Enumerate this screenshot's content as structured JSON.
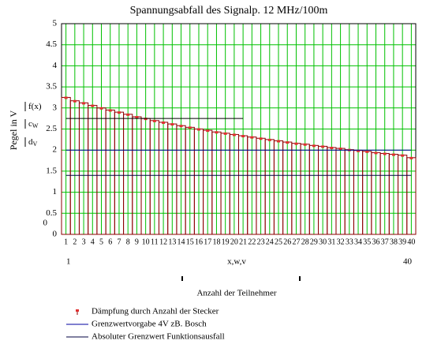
{
  "chart_data": {
    "type": "bar",
    "title": "Spannungsabfall des Signalp. 12 MHz/100m",
    "ylabel": "Pegel in V",
    "xlabel": "Anzahl der Teilnehmer",
    "xvar_label": "x,w,v",
    "xrange": [
      1,
      40
    ],
    "yrange_low": 0,
    "y_trace_labels": [
      {
        "main": "f(x)"
      },
      {
        "main": "c",
        "sub": "W"
      },
      {
        "main": "d",
        "sub": "V"
      }
    ],
    "x": [
      1,
      2,
      3,
      4,
      5,
      6,
      7,
      8,
      9,
      10,
      11,
      12,
      13,
      14,
      15,
      16,
      17,
      18,
      19,
      20,
      21,
      22,
      23,
      24,
      25,
      26,
      27,
      28,
      29,
      30,
      31,
      32,
      33,
      34,
      35,
      36,
      37,
      38,
      39,
      40
    ],
    "xlim": [
      0.5,
      40.5
    ],
    "xticks": [
      1,
      2,
      3,
      4,
      5,
      6,
      7,
      8,
      9,
      10,
      11,
      12,
      13,
      14,
      15,
      16,
      17,
      18,
      19,
      20,
      21,
      22,
      23,
      24,
      25,
      26,
      27,
      28,
      29,
      30,
      31,
      32,
      33,
      34,
      35,
      36,
      37,
      38,
      39,
      40
    ],
    "ylim": [
      0,
      5
    ],
    "yticks": [
      0,
      0.5,
      1,
      1.5,
      2,
      2.5,
      3,
      3.5,
      4,
      4.5,
      5
    ],
    "grid": true,
    "grid_color": "#00c000",
    "series": [
      {
        "name": "Dämpfung durch Anzahl der Stecker",
        "type": "bar",
        "color": "#8b0000",
        "cap_color": "#e03030",
        "values": [
          3.25,
          3.17,
          3.12,
          3.06,
          3.0,
          2.95,
          2.9,
          2.85,
          2.79,
          2.75,
          2.7,
          2.66,
          2.62,
          2.58,
          2.54,
          2.5,
          2.47,
          2.43,
          2.4,
          2.37,
          2.34,
          2.31,
          2.28,
          2.25,
          2.22,
          2.19,
          2.16,
          2.14,
          2.11,
          2.09,
          2.06,
          2.04,
          2.01,
          1.99,
          1.97,
          1.94,
          1.92,
          1.9,
          1.88,
          1.82
        ]
      },
      {
        "name": "Grenzwertvorgabe 4V zB. Bosch",
        "type": "line",
        "color": "#0000a0",
        "values": [
          2,
          2,
          2,
          2,
          2,
          2,
          2,
          2,
          2,
          2,
          2,
          2,
          2,
          2,
          2,
          2,
          2,
          2,
          2,
          2,
          2,
          2,
          2,
          2,
          2,
          2,
          2,
          2,
          2,
          2,
          2,
          2,
          2,
          2,
          2,
          2,
          2,
          2,
          2,
          2
        ]
      },
      {
        "name": "Absoluter Grenzwert Funktionsausfall",
        "type": "line",
        "color": "#000040",
        "values": [
          1.4,
          1.4,
          1.4,
          1.4,
          1.4,
          1.4,
          1.4,
          1.4,
          1.4,
          1.4,
          1.4,
          1.4,
          1.4,
          1.4,
          1.4,
          1.4,
          1.4,
          1.4,
          1.4,
          1.4,
          1.4,
          1.4,
          1.4,
          1.4,
          1.4,
          1.4,
          1.4,
          1.4,
          1.4,
          1.4,
          1.4,
          1.4,
          1.4,
          1.4,
          1.4,
          1.4,
          1.4,
          1.4,
          1.4,
          1.4
        ]
      },
      {
        "type": "line",
        "color": "#000000",
        "values": [
          2.75,
          2.75,
          2.75,
          2.75,
          2.75,
          2.75,
          2.75,
          2.75,
          2.75,
          2.75,
          2.75,
          2.75,
          2.75,
          2.75,
          2.75,
          2.75,
          2.75,
          2.75,
          2.75,
          2.75,
          2.75,
          null,
          null,
          null,
          null,
          null,
          null,
          null,
          null,
          null,
          null,
          null,
          null,
          null,
          null,
          null,
          null,
          null,
          null,
          null
        ]
      }
    ]
  }
}
